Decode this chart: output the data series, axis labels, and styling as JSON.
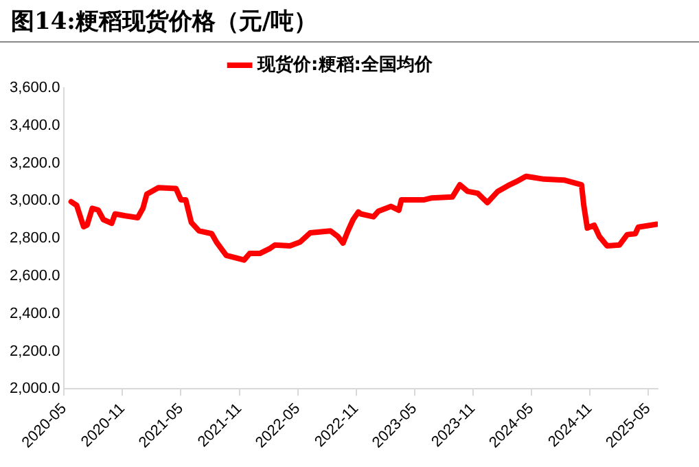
{
  "chart_data": {
    "type": "line",
    "title": "图14:粳稻现货价格（元/吨）",
    "x": [
      "2020-05-23",
      "2020-06-10",
      "2020-07-01",
      "2020-07-12",
      "2020-07-28",
      "2020-08-16",
      "2020-09-02",
      "2020-09-28",
      "2020-10-08",
      "2020-11-10",
      "2020-12-18",
      "2021-01-04",
      "2021-01-16",
      "2021-02-22",
      "2021-04-16",
      "2021-05-01",
      "2021-05-16",
      "2021-06-03",
      "2021-06-27",
      "2021-08-06",
      "2021-08-21",
      "2021-09-21",
      "2021-10-24",
      "2021-11-16",
      "2021-12-03",
      "2022-01-04",
      "2022-02-04",
      "2022-02-21",
      "2022-04-07",
      "2022-05-08",
      "2022-06-10",
      "2022-08-12",
      "2022-09-05",
      "2022-09-21",
      "2022-10-06",
      "2022-10-22",
      "2022-11-08",
      "2022-11-16",
      "2022-12-25",
      "2023-01-10",
      "2023-02-19",
      "2023-03-13",
      "2023-03-21",
      "2023-06-01",
      "2023-06-25",
      "2023-08-28",
      "2023-09-21",
      "2023-10-15",
      "2023-11-16",
      "2023-12-16",
      "2024-01-18",
      "2024-02-19",
      "2024-03-13",
      "2024-04-15",
      "2024-06-10",
      "2024-08-12",
      "2024-10-06",
      "2024-10-13",
      "2024-10-24",
      "2024-11-15",
      "2024-12-01",
      "2024-12-25",
      "2025-02-03",
      "2025-02-27",
      "2025-03-22",
      "2025-04-01",
      "2025-05-28"
    ],
    "series": [
      {
        "name": "现货价:粳稻:全国均价",
        "color": "#ff0000",
        "values": [
          2995,
          2975,
          2862,
          2871,
          2960,
          2951,
          2900,
          2880,
          2930,
          2920,
          2910,
          2960,
          3035,
          3070,
          3065,
          3005,
          3005,
          2885,
          2840,
          2825,
          2780,
          2710,
          2695,
          2685,
          2720,
          2720,
          2745,
          2765,
          2760,
          2780,
          2830,
          2840,
          2810,
          2775,
          2840,
          2900,
          2940,
          2930,
          2915,
          2945,
          2970,
          2950,
          3005,
          3005,
          3015,
          3020,
          3085,
          3050,
          3040,
          2990,
          3050,
          3080,
          3100,
          3130,
          3115,
          3110,
          3085,
          2975,
          2855,
          2870,
          2810,
          2760,
          2765,
          2820,
          2825,
          2860,
          2875
        ]
      }
    ],
    "xlim": [
      "2020-05-01",
      "2025-06-01"
    ],
    "xticks": [
      "2020-05",
      "2020-11",
      "2021-05",
      "2021-11",
      "2022-05",
      "2022-11",
      "2023-05",
      "2023-11",
      "2024-05",
      "2024-11",
      "2025-05"
    ],
    "ylim": [
      2000,
      3600
    ],
    "yticks": [
      {
        "value": 2000,
        "label": "2,000.0"
      },
      {
        "value": 2200,
        "label": "2,200.0"
      },
      {
        "value": 2400,
        "label": "2,400.0"
      },
      {
        "value": 2600,
        "label": "2,600.0"
      },
      {
        "value": 2800,
        "label": "2,800.0"
      },
      {
        "value": 3000,
        "label": "3,000.0"
      },
      {
        "value": 3200,
        "label": "3,200.0"
      },
      {
        "value": 3400,
        "label": "3,400.0"
      },
      {
        "value": 3600,
        "label": "3,600.0"
      }
    ],
    "grid": false,
    "legend": "top",
    "marker": "none",
    "line_style": "solid"
  }
}
